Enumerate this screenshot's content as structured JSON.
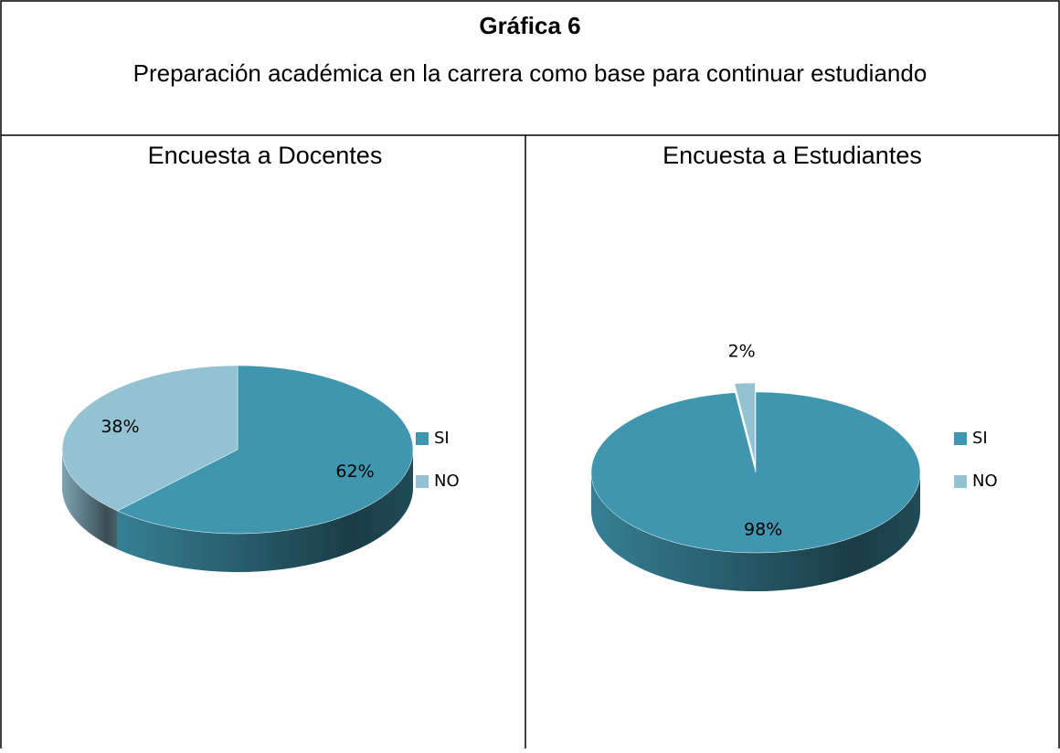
{
  "header": {
    "title": "Gráfica 6",
    "subtitle": "Preparación académica en la carrera como base para continuar estudiando"
  },
  "chart_data": [
    {
      "type": "pie",
      "title": "Encuesta a Docentes",
      "categories": [
        "SI",
        "NO"
      ],
      "values": [
        62,
        38
      ],
      "value_labels": [
        "62%",
        "38%"
      ],
      "colors": [
        "#4096ae",
        "#93c2d3"
      ],
      "exploded": [
        false,
        false
      ],
      "legend": "right"
    },
    {
      "type": "pie",
      "title": "Encuesta a Estudiantes",
      "categories": [
        "SI",
        "NO"
      ],
      "values": [
        98,
        2
      ],
      "value_labels": [
        "98%",
        "2%"
      ],
      "colors": [
        "#4096ae",
        "#93c2d3"
      ],
      "exploded": [
        false,
        true
      ],
      "legend": "right"
    }
  ]
}
